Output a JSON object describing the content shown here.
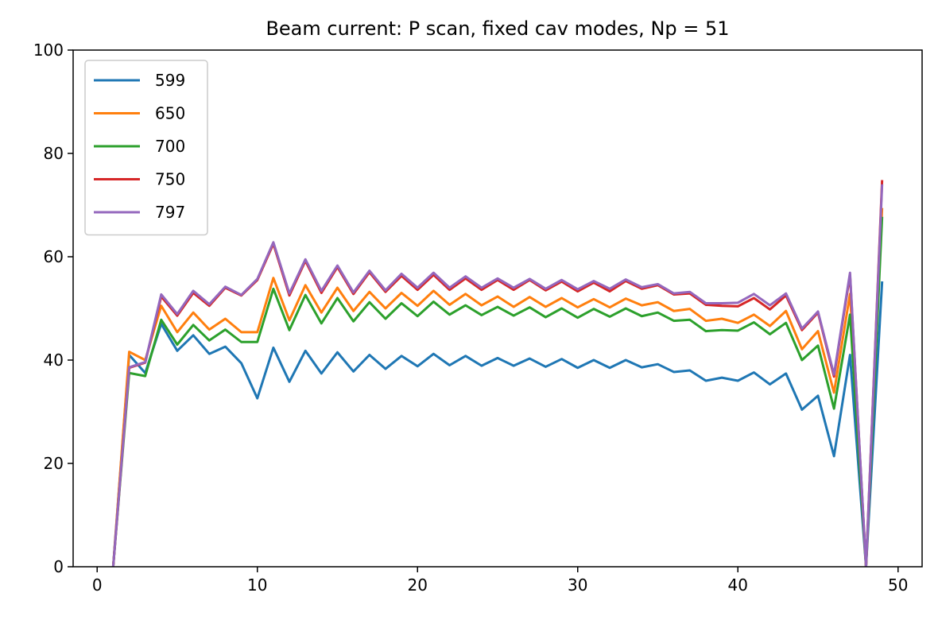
{
  "chart_data": {
    "type": "line",
    "title": "Beam current: P scan, fixed cav modes, Np = 51",
    "xlabel": "",
    "ylabel": "",
    "xlim": [
      -1.5,
      51.5
    ],
    "ylim": [
      0,
      100
    ],
    "xticks": [
      0,
      10,
      20,
      30,
      40,
      50
    ],
    "yticks": [
      0,
      20,
      40,
      60,
      80,
      100
    ],
    "grid": false,
    "legend_position": "top-left",
    "x": [
      1,
      2,
      3,
      4,
      5,
      6,
      7,
      8,
      9,
      10,
      11,
      12,
      13,
      14,
      15,
      16,
      17,
      18,
      19,
      20,
      21,
      22,
      23,
      24,
      25,
      26,
      27,
      28,
      29,
      30,
      31,
      32,
      33,
      34,
      35,
      36,
      37,
      38,
      39,
      40,
      41,
      42,
      43,
      44,
      45,
      46,
      47,
      48,
      49
    ],
    "series": [
      {
        "name": "599",
        "color": "#1f77b4",
        "values": [
          0,
          41,
          37.5,
          47,
          41.8,
          44.8,
          41.2,
          42.6,
          39.4,
          32.6,
          42.4,
          35.8,
          41.8,
          37.4,
          41.5,
          37.8,
          41,
          38.3,
          40.8,
          38.8,
          41.2,
          39,
          40.8,
          38.9,
          40.4,
          38.9,
          40.3,
          38.7,
          40.2,
          38.5,
          40,
          38.5,
          40,
          38.6,
          39.2,
          37.7,
          38,
          36,
          36.6,
          36,
          37.6,
          35.3,
          37.4,
          30.4,
          33.1,
          21.4,
          41,
          0,
          55
        ]
      },
      {
        "name": "650",
        "color": "#ff7f0e",
        "values": [
          0,
          41.6,
          40,
          50.5,
          45.4,
          49.2,
          45.9,
          48,
          45.4,
          45.4,
          55.9,
          47.7,
          54.5,
          49.2,
          54,
          49.5,
          53.2,
          50,
          53,
          50.5,
          53.4,
          50.7,
          52.8,
          50.6,
          52.3,
          50.3,
          52.2,
          50.3,
          52,
          50.2,
          51.8,
          50.2,
          51.9,
          50.6,
          51.2,
          49.5,
          49.9,
          47.6,
          48,
          47.2,
          48.8,
          46.6,
          49.5,
          42.1,
          45.6,
          33.7,
          52.8,
          0,
          69.2
        ]
      },
      {
        "name": "700",
        "color": "#2ca02c",
        "values": [
          0,
          37.5,
          36.9,
          47.8,
          43,
          46.8,
          43.8,
          45.9,
          43.5,
          43.5,
          53.8,
          45.8,
          52.6,
          47.1,
          52,
          47.5,
          51.2,
          48,
          51,
          48.5,
          51.3,
          48.8,
          50.6,
          48.7,
          50.3,
          48.6,
          50.2,
          48.3,
          50,
          48.2,
          49.9,
          48.4,
          50,
          48.5,
          49.2,
          47.6,
          47.8,
          45.6,
          45.8,
          45.7,
          47.3,
          45,
          47.2,
          40,
          42.8,
          30.6,
          48.8,
          0,
          67.5
        ]
      },
      {
        "name": "750",
        "color": "#d62728",
        "values": [
          0,
          38.5,
          39.5,
          52.3,
          48.6,
          53,
          50.5,
          54,
          52.5,
          55.5,
          62.5,
          52.5,
          59.2,
          53,
          58,
          52.8,
          57,
          53.2,
          56.3,
          53.6,
          56.5,
          53.6,
          55.8,
          53.6,
          55.5,
          53.6,
          55.5,
          53.5,
          55.2,
          53.3,
          55,
          53.3,
          55.3,
          53.8,
          54.5,
          52.7,
          52.9,
          50.7,
          50.5,
          50.4,
          52,
          49.8,
          52.5,
          45.8,
          49.2,
          36.8,
          56.5,
          0,
          74.6
        ]
      },
      {
        "name": "797",
        "color": "#9467bd",
        "values": [
          0,
          38.6,
          39.6,
          52.7,
          48.9,
          53.4,
          50.8,
          54.2,
          52.6,
          55.7,
          62.8,
          52.9,
          59.5,
          53.4,
          58.3,
          53.1,
          57.3,
          53.5,
          56.7,
          54,
          56.9,
          54,
          56.2,
          54,
          55.8,
          54,
          55.7,
          53.8,
          55.5,
          53.7,
          55.3,
          53.8,
          55.6,
          54.1,
          54.7,
          52.9,
          53.2,
          51,
          51,
          51.1,
          52.8,
          50.6,
          52.9,
          46.1,
          49.4,
          37.2,
          56.9,
          0,
          73.8
        ]
      }
    ]
  }
}
